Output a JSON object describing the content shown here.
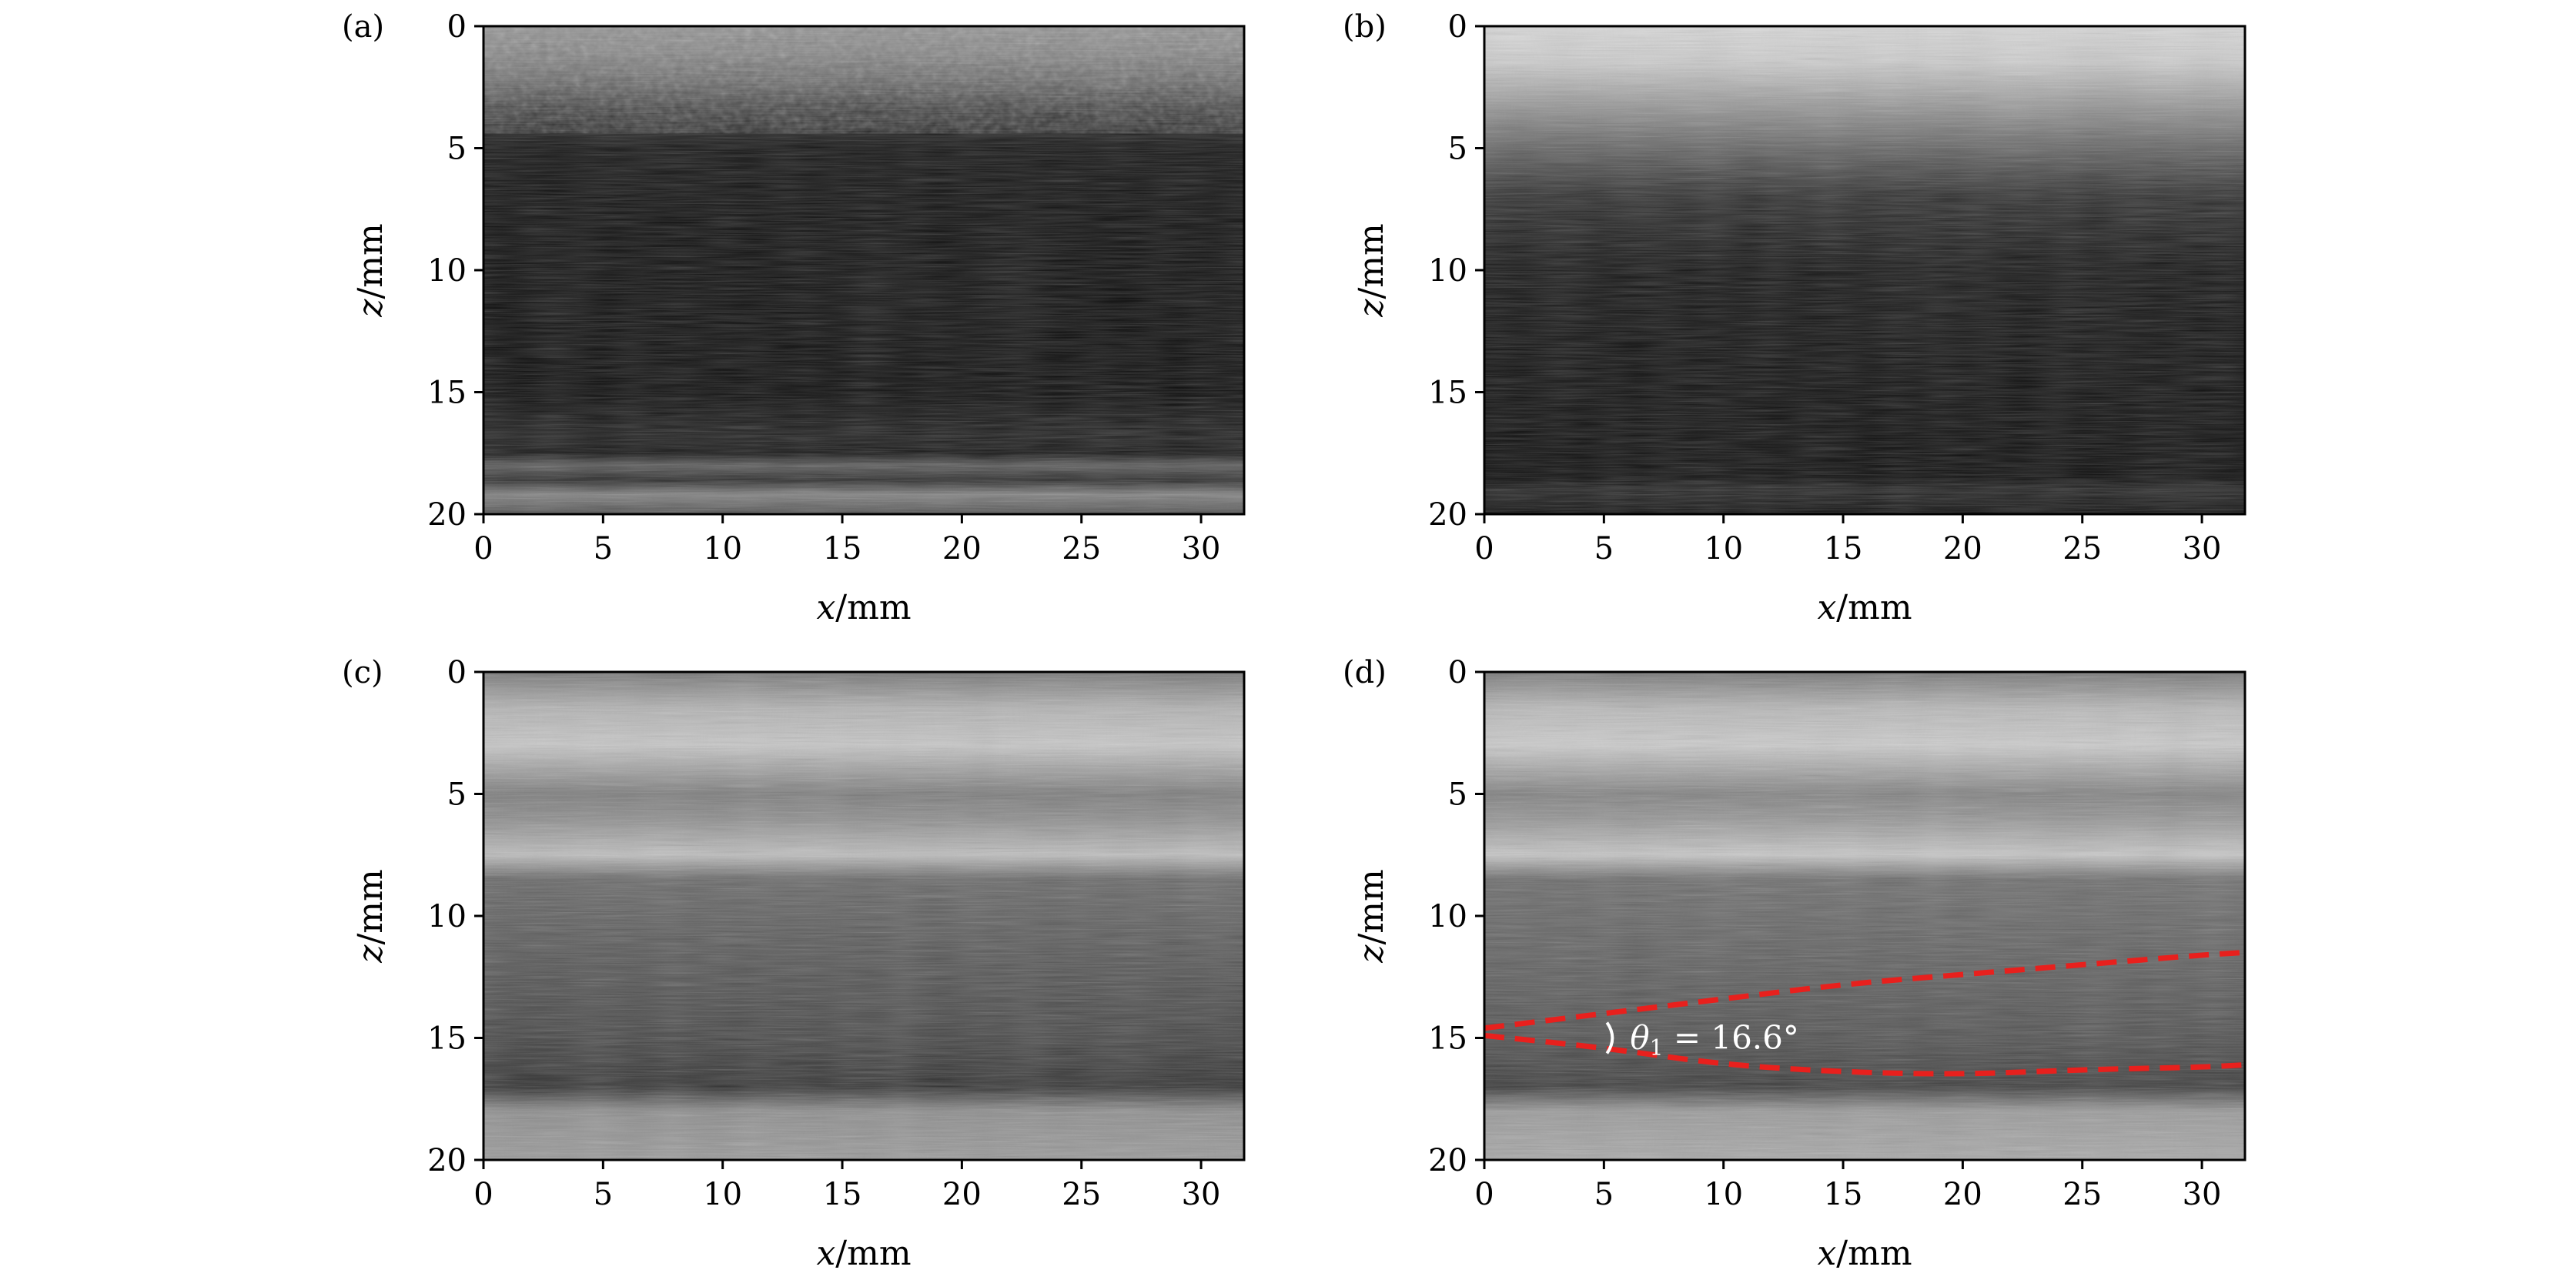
{
  "chart_data": [
    {
      "panel_label": "(a)",
      "type": "heatmap",
      "xlabel": {
        "var": "x",
        "unit": "/mm"
      },
      "ylabel": {
        "var": "z",
        "unit": "/mm"
      },
      "xlim": [
        0,
        31.8
      ],
      "ylim": [
        20,
        0
      ],
      "xticks": [
        "0",
        "5",
        "10",
        "15",
        "20",
        "25",
        "30"
      ],
      "yticks": [
        "0",
        "5",
        "10",
        "15",
        "20"
      ],
      "colormap": "gray",
      "intensity_profile": [
        {
          "z": 0,
          "v": 0.55
        },
        {
          "z": 1,
          "v": 0.5
        },
        {
          "z": 2.2,
          "v": 0.38
        },
        {
          "z": 3.5,
          "v": 0.18
        },
        {
          "z": 5,
          "v": 0.05
        },
        {
          "z": 8,
          "v": 0.03
        },
        {
          "z": 15,
          "v": 0.02
        },
        {
          "z": 16.8,
          "v": 0.1
        },
        {
          "z": 17.5,
          "v": 0.06
        },
        {
          "z": 18,
          "v": 0.35
        },
        {
          "z": 18.6,
          "v": 0.15
        },
        {
          "z": 19.2,
          "v": 0.5
        },
        {
          "z": 20,
          "v": 0.3
        }
      ]
    },
    {
      "panel_label": "(b)",
      "type": "heatmap",
      "xlabel": {
        "var": "x",
        "unit": "/mm"
      },
      "ylabel": {
        "var": "z",
        "unit": "/mm"
      },
      "xlim": [
        0,
        31.8
      ],
      "ylim": [
        20,
        0
      ],
      "xticks": [
        "0",
        "5",
        "10",
        "15",
        "20",
        "25",
        "30"
      ],
      "yticks": [
        "0",
        "5",
        "10",
        "15",
        "20"
      ],
      "colormap": "gray",
      "intensity_profile": [
        {
          "z": 0,
          "v": 0.85
        },
        {
          "z": 1.5,
          "v": 0.8
        },
        {
          "z": 3,
          "v": 0.62
        },
        {
          "z": 5,
          "v": 0.38
        },
        {
          "z": 7,
          "v": 0.16
        },
        {
          "z": 10,
          "v": 0.06
        },
        {
          "z": 15,
          "v": 0.03
        },
        {
          "z": 18.5,
          "v": 0.02
        },
        {
          "z": 19,
          "v": 0.12
        },
        {
          "z": 20,
          "v": 0.03
        }
      ]
    },
    {
      "panel_label": "(c)",
      "type": "heatmap",
      "xlabel": {
        "var": "x",
        "unit": "/mm"
      },
      "ylabel": {
        "var": "z",
        "unit": "/mm"
      },
      "xlim": [
        0,
        31.8
      ],
      "ylim": [
        20,
        0
      ],
      "xticks": [
        "0",
        "5",
        "10",
        "15",
        "20",
        "25",
        "30"
      ],
      "yticks": [
        "0",
        "5",
        "10",
        "15",
        "20"
      ],
      "colormap": "gray",
      "intensity_profile": [
        {
          "z": 0,
          "v": 0.45
        },
        {
          "z": 1.5,
          "v": 0.7
        },
        {
          "z": 3,
          "v": 0.78
        },
        {
          "z": 5,
          "v": 0.48
        },
        {
          "z": 6,
          "v": 0.55
        },
        {
          "z": 7.5,
          "v": 0.75
        },
        {
          "z": 8.5,
          "v": 0.4
        },
        {
          "z": 12,
          "v": 0.32
        },
        {
          "z": 15,
          "v": 0.26
        },
        {
          "z": 17,
          "v": 0.18
        },
        {
          "z": 18,
          "v": 0.55
        },
        {
          "z": 20,
          "v": 0.6
        }
      ]
    },
    {
      "panel_label": "(d)",
      "type": "heatmap",
      "xlabel": {
        "var": "x",
        "unit": "/mm"
      },
      "ylabel": {
        "var": "z",
        "unit": "/mm"
      },
      "xlim": [
        0,
        31.8
      ],
      "ylim": [
        20,
        0
      ],
      "xticks": [
        "0",
        "5",
        "10",
        "15",
        "20",
        "25",
        "30"
      ],
      "yticks": [
        "0",
        "5",
        "10",
        "15",
        "20"
      ],
      "colormap": "gray",
      "intensity_profile": [
        {
          "z": 0,
          "v": 0.45
        },
        {
          "z": 1.5,
          "v": 0.72
        },
        {
          "z": 3,
          "v": 0.8
        },
        {
          "z": 5,
          "v": 0.5
        },
        {
          "z": 6,
          "v": 0.58
        },
        {
          "z": 7.5,
          "v": 0.78
        },
        {
          "z": 8.5,
          "v": 0.42
        },
        {
          "z": 12,
          "v": 0.36
        },
        {
          "z": 15,
          "v": 0.3
        },
        {
          "z": 17,
          "v": 0.22
        },
        {
          "z": 18,
          "v": 0.6
        },
        {
          "z": 20,
          "v": 0.66
        }
      ],
      "overlay_lines": {
        "color": "#e8201d",
        "style": "dashed",
        "upper": [
          {
            "x": 0,
            "z": 14.6
          },
          {
            "x": 5,
            "z": 14.0
          },
          {
            "x": 10,
            "z": 13.4
          },
          {
            "x": 15,
            "z": 12.8
          },
          {
            "x": 20,
            "z": 12.4
          },
          {
            "x": 25,
            "z": 12.0
          },
          {
            "x": 30,
            "z": 11.6
          },
          {
            "x": 31.8,
            "z": 11.5
          }
        ],
        "lower": [
          {
            "x": 0,
            "z": 14.9
          },
          {
            "x": 5,
            "z": 15.4
          },
          {
            "x": 10,
            "z": 16.1
          },
          {
            "x": 15,
            "z": 16.4
          },
          {
            "x": 20,
            "z": 16.5
          },
          {
            "x": 25,
            "z": 16.3
          },
          {
            "x": 30,
            "z": 16.2
          },
          {
            "x": 31.8,
            "z": 16.1
          }
        ]
      },
      "annotation": {
        "symbol": "θ",
        "subscript": "1",
        "value_text": " = 16.6°",
        "x": 5,
        "z": 15
      }
    }
  ]
}
